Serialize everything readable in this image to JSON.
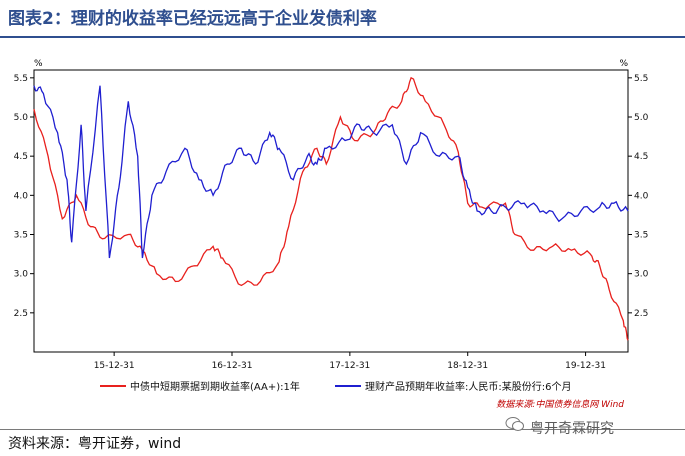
{
  "header": {
    "title": "图表2：理财的收益率已经远远高于企业发债利率"
  },
  "footer": {
    "source": "资料来源：粤开证券，wind",
    "watermark": "粤开奇霖研究"
  },
  "chart_data": {
    "type": "line",
    "unit_left": "%",
    "unit_right": "%",
    "x_ticks": [
      "15-12-31",
      "16-12-31",
      "17-12-31",
      "18-12-31",
      "19-12-31"
    ],
    "ylim": [
      2.0,
      5.6
    ],
    "y_ticks": [
      2.5,
      3.0,
      3.5,
      4.0,
      4.5,
      5.0,
      5.5
    ],
    "y_tick_labels": [
      "2.5",
      "3.0",
      "3.5",
      "4.0",
      "4.5",
      "5.0",
      "5.5"
    ],
    "source_note": "数据来源:中国债券信息网 Wind",
    "colors": {
      "red": "#e8211e",
      "blue": "#1f1fd0"
    },
    "series": [
      {
        "name": "中债中短期票据到期收益率(AA+):1年",
        "color": "#e8211e",
        "values": [
          [
            0,
            5.1
          ],
          [
            0.15,
            4.5
          ],
          [
            0.3,
            3.7
          ],
          [
            0.45,
            4.0
          ],
          [
            0.6,
            3.6
          ],
          [
            0.75,
            3.45
          ],
          [
            1.0,
            3.5
          ],
          [
            1.15,
            3.3
          ],
          [
            1.3,
            3.0
          ],
          [
            1.5,
            2.9
          ],
          [
            1.7,
            3.1
          ],
          [
            1.9,
            3.35
          ],
          [
            2.0,
            3.2
          ],
          [
            2.2,
            2.85
          ],
          [
            2.4,
            2.9
          ],
          [
            2.6,
            3.15
          ],
          [
            2.7,
            3.6
          ],
          [
            2.85,
            4.3
          ],
          [
            3.0,
            4.6
          ],
          [
            3.1,
            4.4
          ],
          [
            3.25,
            5.0
          ],
          [
            3.4,
            4.7
          ],
          [
            3.6,
            4.8
          ],
          [
            3.75,
            5.05
          ],
          [
            3.9,
            5.2
          ],
          [
            4.0,
            5.5
          ],
          [
            4.15,
            5.2
          ],
          [
            4.35,
            4.9
          ],
          [
            4.5,
            4.55
          ],
          [
            4.6,
            3.9
          ],
          [
            4.75,
            3.85
          ],
          [
            5.0,
            3.9
          ],
          [
            5.1,
            3.5
          ],
          [
            5.3,
            3.3
          ],
          [
            5.5,
            3.35
          ],
          [
            5.7,
            3.3
          ],
          [
            5.9,
            3.25
          ],
          [
            6.0,
            3.1
          ],
          [
            6.1,
            2.8
          ],
          [
            6.25,
            2.4
          ],
          [
            6.3,
            2.15
          ]
        ]
      },
      {
        "name": "理财产品预期年收益率:人民币:某股份行:6个月",
        "color": "#1f1fd0",
        "values": [
          [
            0,
            5.4
          ],
          [
            0.1,
            5.3
          ],
          [
            0.25,
            4.8
          ],
          [
            0.35,
            4.2
          ],
          [
            0.4,
            3.4
          ],
          [
            0.5,
            4.9
          ],
          [
            0.55,
            3.8
          ],
          [
            0.7,
            5.4
          ],
          [
            0.8,
            3.2
          ],
          [
            0.9,
            4.1
          ],
          [
            1.0,
            5.2
          ],
          [
            1.1,
            4.5
          ],
          [
            1.15,
            3.2
          ],
          [
            1.25,
            4.0
          ],
          [
            1.4,
            4.3
          ],
          [
            1.6,
            4.6
          ],
          [
            1.75,
            4.2
          ],
          [
            1.9,
            4.0
          ],
          [
            2.05,
            4.4
          ],
          [
            2.2,
            4.6
          ],
          [
            2.35,
            4.4
          ],
          [
            2.5,
            4.8
          ],
          [
            2.6,
            4.6
          ],
          [
            2.75,
            4.2
          ],
          [
            2.9,
            4.5
          ],
          [
            3.0,
            4.4
          ],
          [
            3.1,
            4.6
          ],
          [
            3.3,
            4.7
          ],
          [
            3.45,
            4.9
          ],
          [
            3.6,
            4.8
          ],
          [
            3.8,
            4.9
          ],
          [
            3.95,
            4.4
          ],
          [
            4.1,
            4.8
          ],
          [
            4.3,
            4.5
          ],
          [
            4.5,
            4.5
          ],
          [
            4.6,
            4.1
          ],
          [
            4.7,
            3.8
          ],
          [
            4.85,
            3.8
          ],
          [
            5.0,
            3.85
          ],
          [
            5.2,
            3.9
          ],
          [
            5.4,
            3.8
          ],
          [
            5.6,
            3.7
          ],
          [
            5.8,
            3.8
          ],
          [
            6.0,
            3.85
          ],
          [
            6.15,
            3.9
          ],
          [
            6.3,
            3.8
          ]
        ]
      }
    ]
  }
}
